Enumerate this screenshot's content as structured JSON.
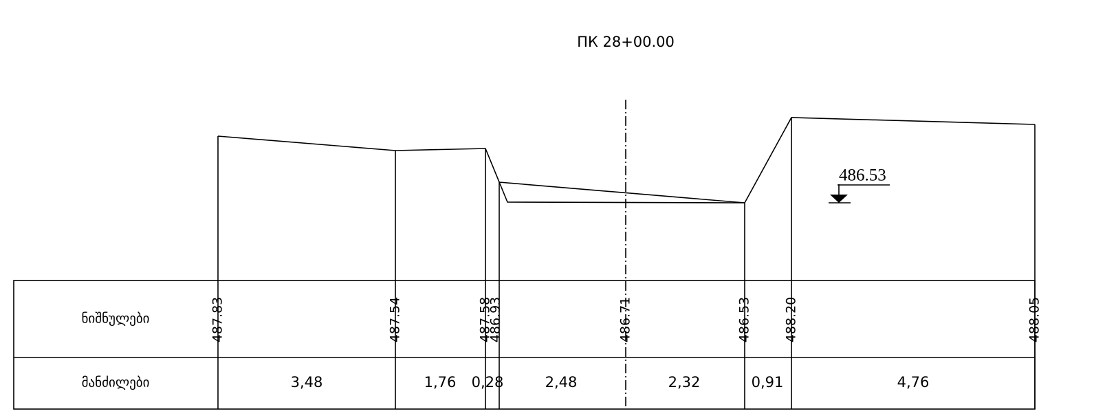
{
  "title": "ПК 28+00.00",
  "water_level": "486.53",
  "table": {
    "row_labels": [
      "ნიშნულები",
      "მანძილები"
    ],
    "elevations": [
      "487.83",
      "487.54",
      "487.58",
      "486.93",
      "486.71",
      "486.53",
      "488.20",
      "488.05"
    ],
    "distances": [
      "3,48",
      "1,76",
      "0,28",
      "2,48",
      "2,32",
      "0,91",
      "4,76"
    ]
  }
}
